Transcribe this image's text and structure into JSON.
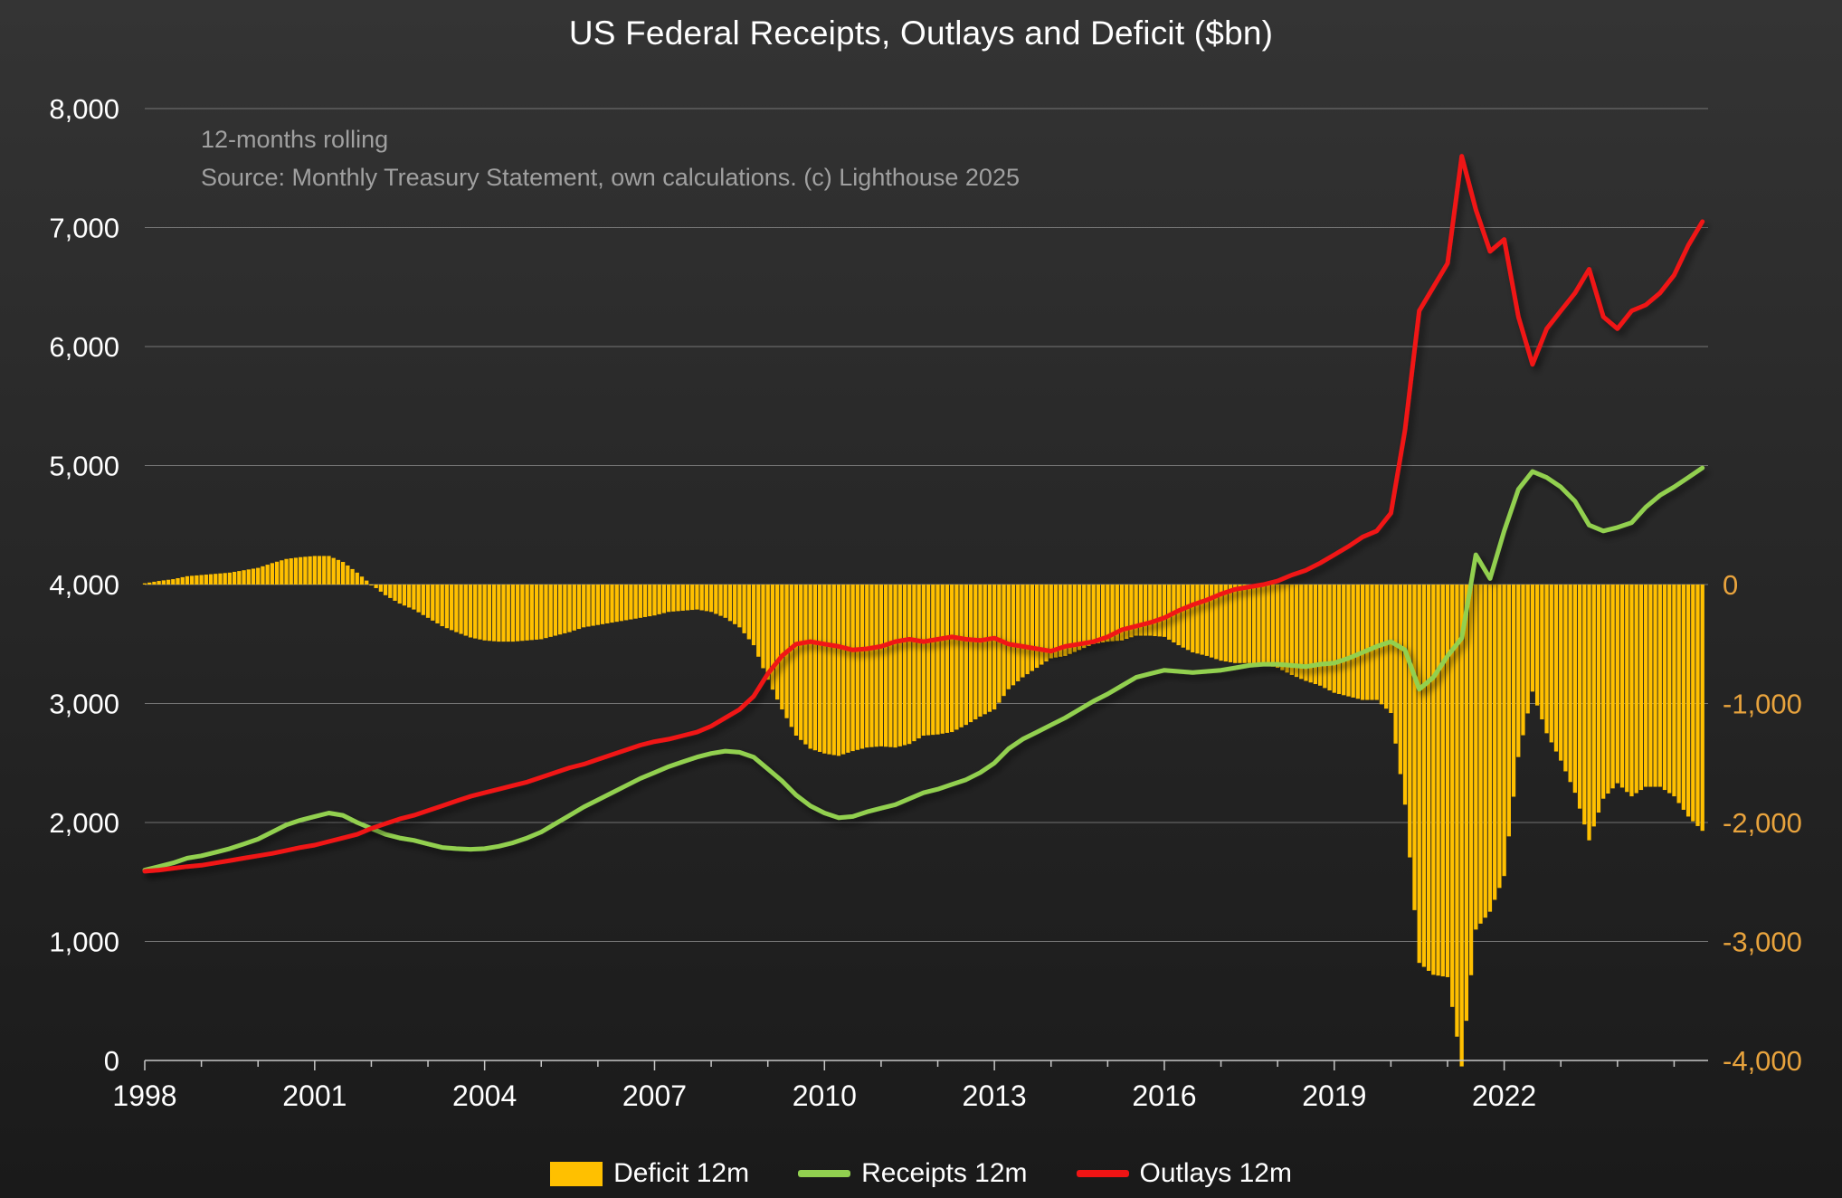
{
  "title": "US Federal Receipts, Outlays and Deficit ($bn)",
  "annotation": {
    "line1": "12-months rolling",
    "line2": "Source: Monthly Treasury Statement, own calculations. (c) Lighthouse 2025"
  },
  "legend": [
    {
      "label": "Deficit 12m",
      "color": "#FFC000",
      "type": "bar"
    },
    {
      "label": "Receipts 12m",
      "color": "#92D050",
      "type": "line"
    },
    {
      "label": "Outlays 12m",
      "color": "#F01414",
      "type": "line"
    }
  ],
  "colors": {
    "background_top": "#343434",
    "background_bottom": "#1a1a1a",
    "gridline": "#8f8f8f",
    "axis_line": "#c8c8c8",
    "left_axis_text": "#ffffff",
    "right_axis_text": "#e8a33d",
    "x_axis_text": "#ffffff",
    "deficit_bar": "#FFC000",
    "receipts_line": "#92D050",
    "outlays_line": "#F01414",
    "annotation_text": "#a0a0a0"
  },
  "chart_data": {
    "type": "combo bar + line (monthly 12-month rolling sums, quarterly sampled)",
    "x_unit": "year",
    "x_start": 1998,
    "x_step_years": 0.25,
    "x_end": 2025.5,
    "left_axis": {
      "min": 0,
      "max": 8000,
      "step": 1000,
      "tick_values": [
        0,
        1000,
        2000,
        3000,
        4000,
        5000,
        6000,
        7000,
        8000
      ],
      "tick_labels": [
        "0",
        "1,000",
        "2,000",
        "3,000",
        "4,000",
        "5,000",
        "6,000",
        "7,000",
        "8,000"
      ]
    },
    "right_axis": {
      "min": -4000,
      "max": 0,
      "offset_vs_left": 4000,
      "tick_values": [
        0,
        -1000,
        -2000,
        -3000,
        -4000
      ],
      "tick_labels": [
        "0",
        "-1,000",
        "-2,000",
        "-3,000",
        "-4,000"
      ]
    },
    "x_ticks": {
      "tick_values": [
        1998,
        2001,
        2004,
        2007,
        2010,
        2013,
        2016,
        2019,
        2022
      ],
      "tick_labels": [
        "1998",
        "2001",
        "2004",
        "2007",
        "2010",
        "2013",
        "2016",
        "2019",
        "2022"
      ],
      "minor_tick_every_years": 1
    },
    "grid": "horizontal only",
    "legend_position": "bottom center",
    "series": [
      {
        "name": "Deficit 12m",
        "type": "bar",
        "axis": "right",
        "color": "#FFC000",
        "values": [
          10,
          30,
          45,
          70,
          80,
          90,
          100,
          120,
          140,
          180,
          215,
          230,
          240,
          240,
          190,
          100,
          0,
          -90,
          -160,
          -210,
          -280,
          -350,
          -400,
          -445,
          -470,
          -480,
          -480,
          -470,
          -460,
          -430,
          -400,
          -360,
          -340,
          -320,
          -300,
          -280,
          -260,
          -230,
          -220,
          -210,
          -230,
          -280,
          -360,
          -510,
          -800,
          -1050,
          -1270,
          -1380,
          -1420,
          -1440,
          -1400,
          -1370,
          -1360,
          -1370,
          -1340,
          -1270,
          -1260,
          -1240,
          -1180,
          -1110,
          -1050,
          -880,
          -780,
          -700,
          -620,
          -600,
          -550,
          -500,
          -480,
          -470,
          -430,
          -430,
          -440,
          -510,
          -570,
          -600,
          -640,
          -660,
          -660,
          -670,
          -700,
          -760,
          -810,
          -850,
          -910,
          -940,
          -970,
          -970,
          -1080,
          -1850,
          -3180,
          -3280,
          -3300,
          -4050,
          -2900,
          -2750,
          -2450,
          -1450,
          -900,
          -1250,
          -1480,
          -1750,
          -2150,
          -1800,
          -1670,
          -1780,
          -1700,
          -1700,
          -1780,
          -1950,
          -2070
        ]
      },
      {
        "name": "Receipts 12m",
        "type": "line",
        "axis": "left",
        "color": "#92D050",
        "values": [
          1600,
          1630,
          1660,
          1700,
          1720,
          1750,
          1780,
          1820,
          1860,
          1920,
          1980,
          2020,
          2050,
          2080,
          2060,
          2000,
          1950,
          1900,
          1870,
          1850,
          1820,
          1790,
          1780,
          1775,
          1780,
          1800,
          1830,
          1870,
          1920,
          1990,
          2060,
          2130,
          2190,
          2250,
          2310,
          2370,
          2420,
          2470,
          2510,
          2550,
          2580,
          2600,
          2590,
          2550,
          2450,
          2350,
          2230,
          2140,
          2080,
          2040,
          2050,
          2090,
          2120,
          2150,
          2200,
          2250,
          2280,
          2320,
          2360,
          2420,
          2500,
          2620,
          2700,
          2760,
          2820,
          2880,
          2950,
          3020,
          3080,
          3150,
          3220,
          3250,
          3280,
          3270,
          3260,
          3270,
          3280,
          3300,
          3320,
          3330,
          3330,
          3320,
          3310,
          3330,
          3340,
          3380,
          3430,
          3480,
          3520,
          3450,
          3120,
          3220,
          3400,
          3550,
          4250,
          4050,
          4450,
          4800,
          4950,
          4900,
          4820,
          4700,
          4500,
          4450,
          4480,
          4520,
          4650,
          4750,
          4820,
          4900,
          4980
        ]
      },
      {
        "name": "Outlays 12m",
        "type": "line",
        "axis": "left",
        "color": "#F01414",
        "values": [
          1590,
          1600,
          1615,
          1630,
          1640,
          1660,
          1680,
          1700,
          1720,
          1740,
          1765,
          1790,
          1810,
          1840,
          1870,
          1900,
          1950,
          1990,
          2030,
          2060,
          2100,
          2140,
          2180,
          2220,
          2250,
          2280,
          2310,
          2340,
          2380,
          2420,
          2460,
          2490,
          2530,
          2570,
          2610,
          2650,
          2680,
          2700,
          2730,
          2760,
          2810,
          2880,
          2950,
          3060,
          3250,
          3400,
          3500,
          3520,
          3500,
          3480,
          3450,
          3460,
          3480,
          3520,
          3540,
          3520,
          3540,
          3560,
          3540,
          3530,
          3550,
          3500,
          3480,
          3460,
          3440,
          3480,
          3500,
          3520,
          3560,
          3620,
          3650,
          3680,
          3720,
          3780,
          3830,
          3870,
          3920,
          3960,
          3980,
          4000,
          4030,
          4080,
          4120,
          4180,
          4250,
          4320,
          4400,
          4450,
          4600,
          5300,
          6300,
          6500,
          6700,
          7600,
          7150,
          6800,
          6900,
          6250,
          5850,
          6150,
          6300,
          6450,
          6650,
          6250,
          6150,
          6300,
          6350,
          6450,
          6600,
          6850,
          7050
        ]
      }
    ]
  }
}
